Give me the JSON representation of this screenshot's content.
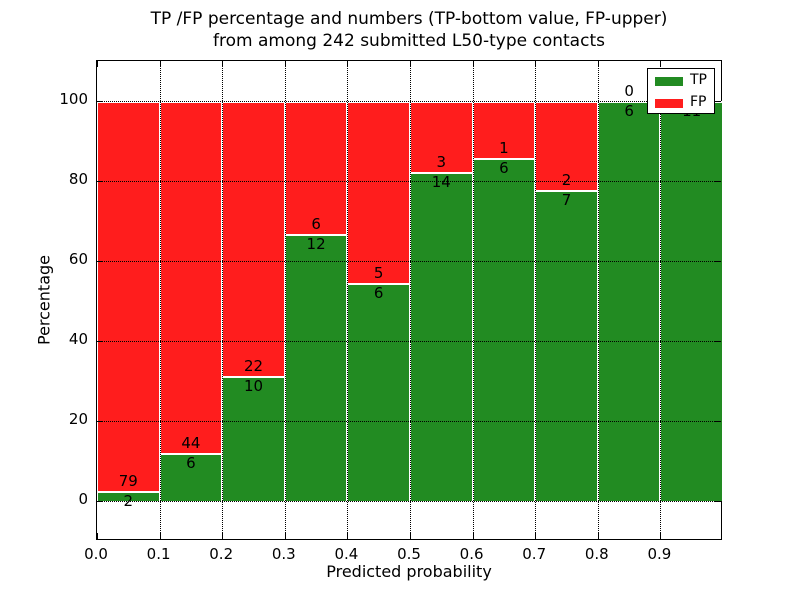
{
  "title": {
    "line1": "TP /FP percentage and numbers (TP-bottom value, FP-upper)",
    "line2": "from among 242 submitted L50-type contacts"
  },
  "axes": {
    "xlabel": "Predicted probability",
    "ylabel": "Percentage",
    "x_tick_labels": [
      "0.0",
      "0.1",
      "0.2",
      "0.3",
      "0.4",
      "0.5",
      "0.6",
      "0.7",
      "0.8",
      "0.9"
    ],
    "y_tick_labels": [
      "0",
      "20",
      "40",
      "60",
      "80",
      "100"
    ],
    "y_tick_values": [
      0,
      20,
      40,
      60,
      80,
      100
    ]
  },
  "legend": {
    "items": [
      {
        "label": "TP",
        "color": "#228B22"
      },
      {
        "label": "FP",
        "color": "#FF1D1D"
      }
    ],
    "position": "upper right"
  },
  "colors": {
    "tp": "#228B22",
    "fp": "#FF1D1D",
    "frame": "#000000",
    "grid": "#000000",
    "bar_edge": "#ffffff",
    "background": "#ffffff"
  },
  "chart_data": {
    "type": "bar",
    "stacked": true,
    "normalized_to_percent": true,
    "total_contacts": 242,
    "categories": [
      "0.0-0.1",
      "0.1-0.2",
      "0.2-0.3",
      "0.3-0.4",
      "0.4-0.5",
      "0.5-0.6",
      "0.6-0.7",
      "0.7-0.8",
      "0.8-0.9",
      "0.9-1.0"
    ],
    "bin_width": 0.1,
    "series": [
      {
        "name": "TP",
        "values": [
          2,
          6,
          10,
          12,
          6,
          14,
          6,
          7,
          6,
          11
        ]
      },
      {
        "name": "FP",
        "values": [
          79,
          44,
          22,
          6,
          5,
          3,
          1,
          2,
          0,
          0
        ]
      }
    ],
    "tp_percent": [
      2.5,
      12.0,
      31.3,
      66.7,
      54.5,
      82.4,
      85.7,
      77.8,
      100.0,
      100.0
    ],
    "title": "TP /FP percentage and numbers (TP-bottom value, FP-upper) from among 242 submitted L50-type contacts",
    "xlabel": "Predicted probability",
    "ylabel": "Percentage",
    "xlim": [
      0.0,
      1.0
    ],
    "ylim": [
      -10,
      110
    ],
    "grid": "dotted",
    "legend_position": "upper right",
    "note": "FP count label printed above each TP/FP boundary, TP count label below it; last bin FP label hidden behind legend"
  }
}
